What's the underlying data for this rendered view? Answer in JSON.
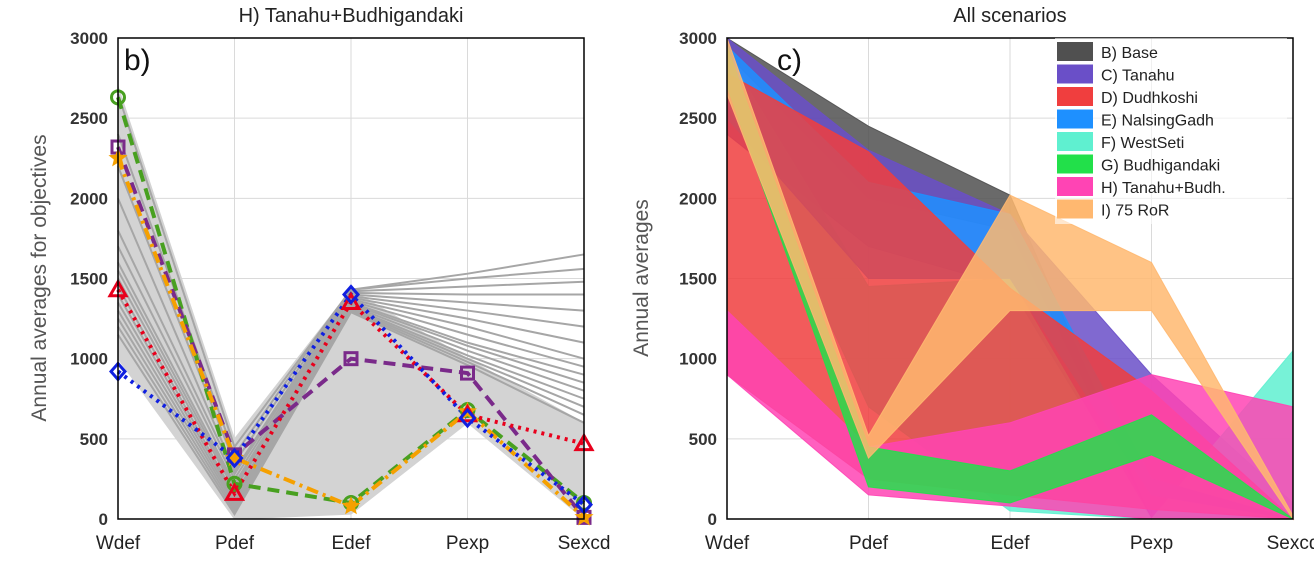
{
  "chart_data": [
    {
      "type": "line",
      "title": "H) Tanahu+Budhigandaki",
      "panel_label": "b)",
      "ylabel": "Annual averages for objectives",
      "categories": [
        "Wdef",
        "Pdef",
        "Edef",
        "Pexp",
        "Sexcd"
      ],
      "ylim": [
        0,
        3000
      ],
      "yticks": [
        "0",
        "500",
        "1000",
        "1500",
        "2000",
        "2500",
        "3000"
      ],
      "grid": true,
      "band": {
        "color": "#d3d3d3",
        "lower": [
          1000,
          0,
          30,
          600,
          0
        ],
        "upper": [
          2700,
          500,
          1430,
          1000,
          600
        ]
      },
      "gray_lines": {
        "color": "#a6a6a6",
        "lines": [
          [
            2650,
            450,
            1430,
            1530,
            1650
          ],
          [
            2400,
            400,
            1430,
            1500,
            1560
          ],
          [
            2200,
            350,
            1420,
            1450,
            1480
          ],
          [
            2000,
            300,
            1410,
            1400,
            1400
          ],
          [
            1800,
            280,
            1400,
            1350,
            1300
          ],
          [
            1700,
            250,
            1390,
            1300,
            1200
          ],
          [
            1600,
            220,
            1380,
            1250,
            1100
          ],
          [
            1550,
            200,
            1370,
            1200,
            1000
          ],
          [
            1500,
            180,
            1360,
            1150,
            950
          ],
          [
            1450,
            150,
            1350,
            1100,
            900
          ],
          [
            1400,
            130,
            1340,
            1080,
            850
          ],
          [
            1350,
            110,
            1330,
            1050,
            800
          ],
          [
            1300,
            90,
            1320,
            1020,
            750
          ],
          [
            1250,
            70,
            1310,
            1000,
            700
          ],
          [
            1200,
            50,
            1300,
            980,
            650
          ],
          [
            1150,
            30,
            1290,
            960,
            600
          ]
        ]
      },
      "series": [
        {
          "color": "#48a020",
          "dash": "long",
          "marker": "circle",
          "values": [
            2630,
            220,
            100,
            680,
            100
          ]
        },
        {
          "color": "#7a2a8a",
          "dash": "long",
          "marker": "square",
          "values": [
            2320,
            400,
            1000,
            910,
            10
          ]
        },
        {
          "color": "#f5a000",
          "dash": "dashdot",
          "marker": "star",
          "values": [
            2250,
            380,
            80,
            670,
            10
          ]
        },
        {
          "color": "#e8001c",
          "dash": "dot",
          "marker": "triangle",
          "values": [
            1430,
            160,
            1350,
            650,
            470
          ]
        },
        {
          "color": "#1020e0",
          "dash": "dot",
          "marker": "diamond",
          "values": [
            920,
            380,
            1400,
            630,
            90
          ]
        }
      ]
    },
    {
      "type": "area",
      "title": "All scenarios",
      "panel_label": "c)",
      "ylabel": "Annual averages",
      "categories": [
        "Wdef",
        "Pdef",
        "Edef",
        "Pexp",
        "Sexcd"
      ],
      "ylim": [
        0,
        3000
      ],
      "yticks": [
        "0",
        "500",
        "1000",
        "1500",
        "2000",
        "2500",
        "3000"
      ],
      "grid": true,
      "legend_position": "top-right",
      "series": [
        {
          "name": "B) Base",
          "color": "#505050",
          "lower": [
            2900,
            2000,
            1800,
            0,
            0
          ],
          "upper": [
            3000,
            2450,
            2020,
            0,
            0
          ]
        },
        {
          "name": "C) Tanahu",
          "color": "#6a4fc8",
          "lower": [
            2400,
            1700,
            1450,
            0,
            0
          ],
          "upper": [
            3000,
            2300,
            1900,
            900,
            100
          ]
        },
        {
          "name": "D) Dudhkoshi",
          "color": "#f03e3e",
          "lower": [
            900,
            250,
            150,
            60,
            0
          ],
          "upper": [
            2780,
            2290,
            1440,
            800,
            0
          ]
        },
        {
          "name": "E) NalsingGadh",
          "color": "#1e90ff",
          "lower": [
            2500,
            1500,
            1500,
            150,
            0
          ],
          "upper": [
            2950,
            2100,
            1900,
            250,
            0
          ]
        },
        {
          "name": "F) WestSeti",
          "color": "#5ff0d0",
          "lower": [
            2600,
            700,
            50,
            0,
            0
          ],
          "upper": [
            2900,
            1450,
            1500,
            0,
            1050
          ]
        },
        {
          "name": "G) Budhigandaki",
          "color": "#22e04a",
          "lower": [
            2700,
            200,
            100,
            400,
            0
          ],
          "upper": [
            2950,
            450,
            300,
            650,
            0
          ]
        },
        {
          "name": "H) Tanahu+Budh.",
          "color": "#ff44b4",
          "lower": [
            900,
            150,
            80,
            0,
            0
          ],
          "upper": [
            1300,
            450,
            600,
            900,
            700
          ]
        },
        {
          "name": "I)  75 RoR",
          "color": "#ffb870",
          "lower": [
            2650,
            380,
            1300,
            1300,
            0
          ],
          "upper": [
            3000,
            520,
            2020,
            1600,
            20
          ]
        }
      ]
    }
  ]
}
